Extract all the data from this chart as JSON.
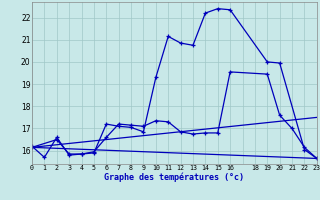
{
  "background_color": "#c8e8e8",
  "grid_color": "#a0c8c8",
  "line_color": "#0000bb",
  "xlabel": "Graphe des températures (°c)",
  "xlim": [
    0,
    23
  ],
  "ylim": [
    15.4,
    22.7
  ],
  "yticks": [
    16,
    17,
    18,
    19,
    20,
    21,
    22
  ],
  "xtick_labels": [
    "0",
    "1",
    "2",
    "3",
    "4",
    "5",
    "6",
    "7",
    "8",
    "9",
    "10",
    "11",
    "12",
    "13",
    "14",
    "15",
    "16",
    "",
    "18",
    "19",
    "20",
    "21",
    "22",
    "23"
  ],
  "line1_x": [
    0,
    1,
    2,
    3,
    4,
    5,
    6,
    7,
    8,
    9,
    10,
    11,
    12,
    13,
    14,
    15,
    16,
    19,
    20,
    22,
    23
  ],
  "line1_y": [
    16.2,
    15.7,
    16.6,
    15.8,
    15.85,
    15.9,
    17.2,
    17.1,
    17.05,
    16.85,
    19.3,
    21.15,
    20.85,
    20.75,
    22.2,
    22.4,
    22.35,
    20.0,
    19.95,
    16.05,
    15.65
  ],
  "line2_x": [
    0,
    2,
    3,
    4,
    5,
    6,
    7,
    8,
    9,
    10,
    11,
    12,
    13,
    14,
    15,
    16,
    19,
    20,
    21,
    22,
    23
  ],
  "line2_y": [
    16.15,
    16.5,
    15.85,
    15.85,
    15.95,
    16.6,
    17.2,
    17.15,
    17.1,
    17.35,
    17.3,
    16.85,
    16.75,
    16.8,
    16.8,
    19.55,
    19.45,
    17.6,
    17.0,
    16.15,
    15.65
  ],
  "line3_x": [
    0,
    23
  ],
  "line3_y": [
    16.15,
    15.65
  ],
  "line4_x": [
    0,
    23
  ],
  "line4_y": [
    16.15,
    17.5
  ]
}
